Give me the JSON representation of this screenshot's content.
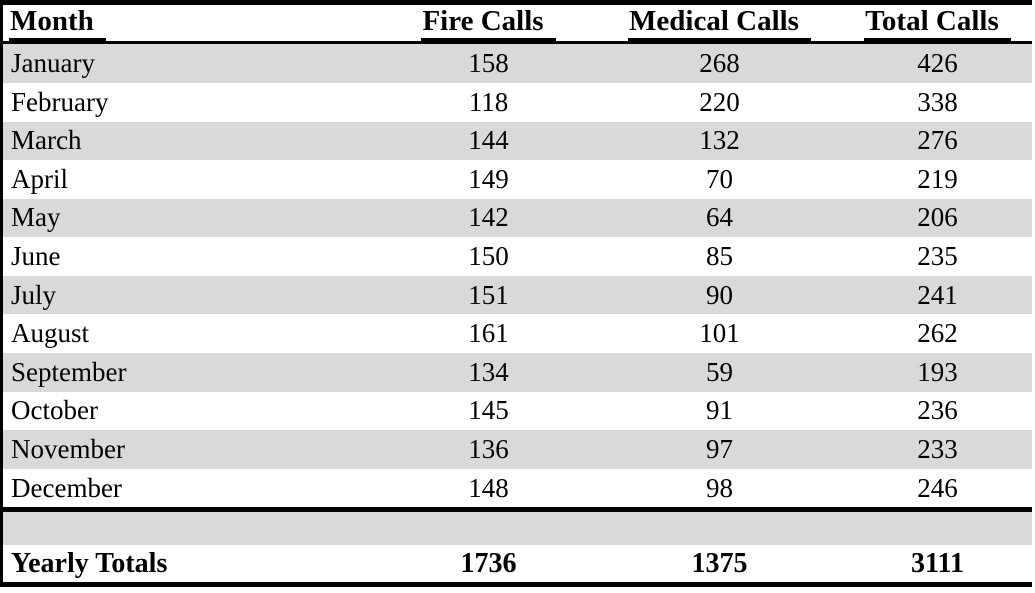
{
  "table": {
    "columns": [
      "Month",
      "Fire Calls",
      "Medical Calls",
      "Total Calls"
    ],
    "rows": [
      {
        "month": "January",
        "fire": "158",
        "medical": "268",
        "total": "426"
      },
      {
        "month": "February",
        "fire": "118",
        "medical": "220",
        "total": "338"
      },
      {
        "month": "March",
        "fire": "144",
        "medical": "132",
        "total": "276"
      },
      {
        "month": "April",
        "fire": "149",
        "medical": "70",
        "total": "219"
      },
      {
        "month": "May",
        "fire": "142",
        "medical": "64",
        "total": "206"
      },
      {
        "month": "June",
        "fire": "150",
        "medical": "85",
        "total": "235"
      },
      {
        "month": "July",
        "fire": "151",
        "medical": "90",
        "total": "241"
      },
      {
        "month": "August",
        "fire": "161",
        "medical": "101",
        "total": "262"
      },
      {
        "month": "September",
        "fire": "134",
        "medical": "59",
        "total": "193"
      },
      {
        "month": "October",
        "fire": "145",
        "medical": "91",
        "total": "236"
      },
      {
        "month": "November",
        "fire": "136",
        "medical": "97",
        "total": "233"
      },
      {
        "month": "December",
        "fire": "148",
        "medical": "98",
        "total": "246"
      }
    ],
    "totals": {
      "label": "Yearly Totals",
      "fire": "1736",
      "medical": "1375",
      "total": "3111"
    }
  },
  "colors": {
    "stripe": "#d9d9d9",
    "border": "#000000",
    "background": "#ffffff",
    "text": "#000000"
  }
}
